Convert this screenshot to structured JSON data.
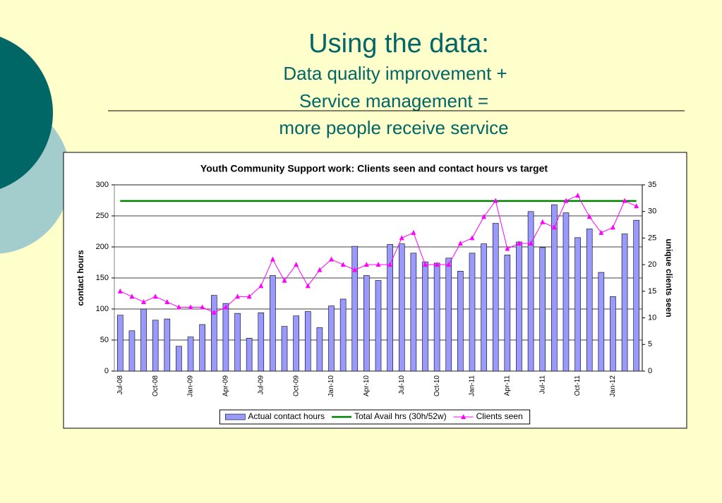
{
  "slide": {
    "title": "Using the data:",
    "subtitle_lines": [
      "Data quality improvement +",
      "Service management =",
      "more people receive service"
    ]
  },
  "chart_data": {
    "type": "bar",
    "title": "Youth Community Support work: Clients seen and contact hours vs target",
    "y_label": "contact hours",
    "y2_label": "unique clients seen",
    "categories": [
      "Jul-08",
      null,
      null,
      "Oct-08",
      null,
      null,
      "Jan-09",
      null,
      null,
      "Apr-09",
      null,
      null,
      "Jul-09",
      null,
      null,
      "Oct-09",
      null,
      null,
      "Jan-10",
      null,
      null,
      "Apr-10",
      null,
      null,
      "Jul-10",
      null,
      null,
      "Oct-10",
      null,
      null,
      "Jan-11",
      null,
      null,
      "Apr-11",
      null,
      null,
      "Jul-11",
      null,
      null,
      "Oct-11",
      null,
      null,
      "Jan-12",
      null,
      null
    ],
    "series": [
      {
        "name": "Actual contact hours",
        "type": "bar",
        "color": "#9999ff",
        "values": [
          90,
          65,
          100,
          82,
          84,
          40,
          55,
          75,
          122,
          109,
          93,
          53,
          94,
          154,
          72,
          89,
          96,
          70,
          105,
          116,
          201,
          154,
          146,
          204,
          205,
          190,
          176,
          174,
          182,
          161,
          190,
          205,
          238,
          187,
          208,
          257,
          199,
          268,
          255,
          215,
          229,
          159,
          120,
          221,
          243
        ]
      },
      {
        "name": "Total Avail hrs (30h/52w)",
        "type": "line",
        "color": "#008000",
        "values": [
          274,
          274,
          274,
          274,
          274,
          274,
          274,
          274,
          274,
          274,
          274,
          274,
          274,
          274,
          274,
          274,
          274,
          274,
          274,
          274,
          274,
          274,
          274,
          274,
          274,
          274,
          274,
          274,
          274,
          274,
          274,
          274,
          274,
          274,
          274,
          274,
          274,
          274,
          274,
          274,
          274,
          274,
          274,
          274,
          274
        ]
      },
      {
        "name": "Clients seen",
        "type": "line",
        "marker": "triangle",
        "axis": "y2",
        "color": "#ff00ff",
        "values": [
          15,
          14,
          13,
          14,
          13,
          12,
          12,
          12,
          11,
          12,
          14,
          14,
          16,
          21,
          17,
          20,
          16,
          19,
          21,
          20,
          19,
          20,
          20,
          20,
          25,
          26,
          20,
          20,
          20,
          24,
          25,
          29,
          32,
          23,
          24,
          24,
          28,
          27,
          32,
          33,
          29,
          26,
          27,
          32,
          31
        ]
      }
    ],
    "ylim": [
      0,
      300
    ],
    "yticks": [
      0,
      50,
      100,
      150,
      200,
      250,
      300
    ],
    "y2lim": [
      0,
      35
    ],
    "y2ticks": [
      0,
      5,
      10,
      15,
      20,
      25,
      30,
      35
    ],
    "grid": true,
    "legend": "bottom"
  }
}
